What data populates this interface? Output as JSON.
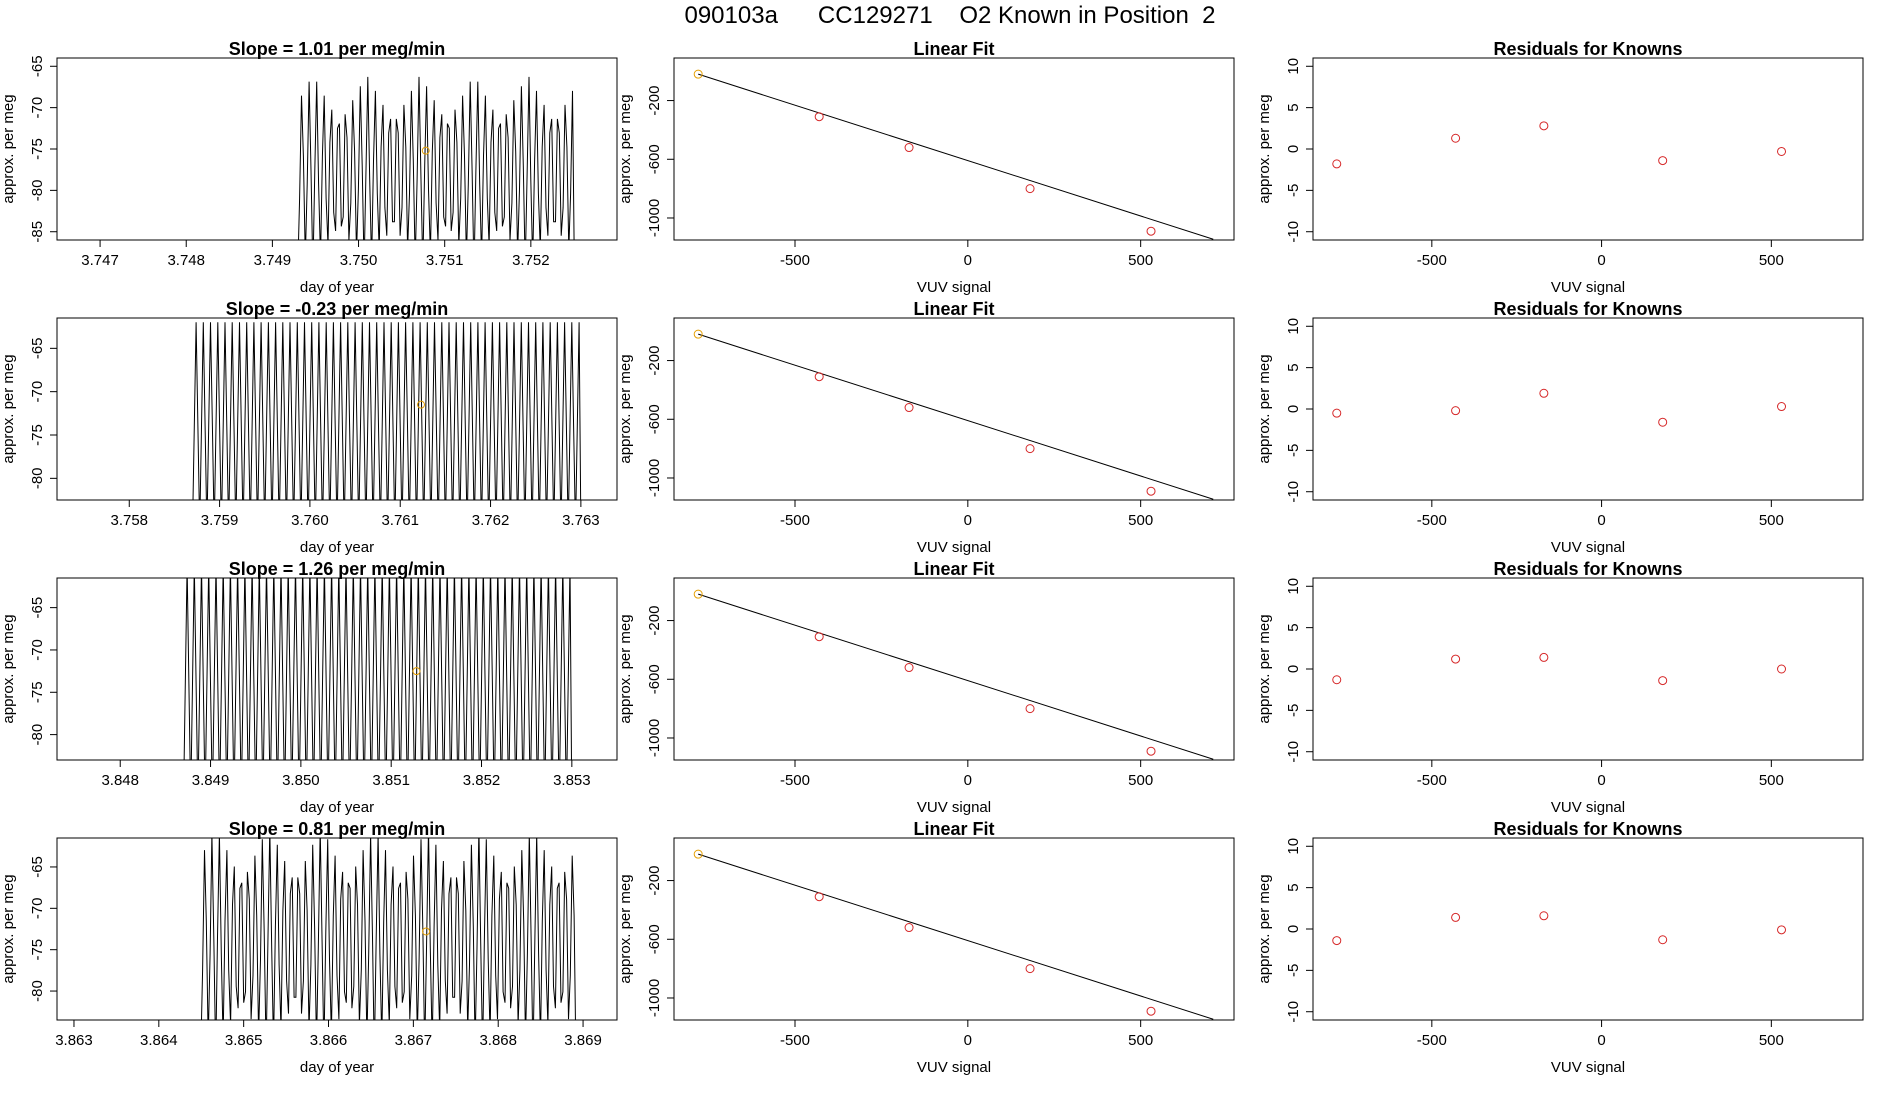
{
  "figure": {
    "title": "090103a      CC129271    O2 Known in Position  2"
  },
  "colors": {
    "axis": "#000000",
    "trace": "#000000",
    "point": "#d62728",
    "first_point": "#e69f00",
    "marker": "#e69f00"
  },
  "chart_data": [
    {
      "type": "line",
      "panel": "timeseries",
      "title": "Slope =  1.01  per meg/min",
      "xlabel": "day of year",
      "ylabel": "approx. per meg",
      "xlim": [
        3.7465,
        3.753
      ],
      "ylim": [
        -86,
        -64
      ],
      "xticks": [
        "3.747",
        "3.748",
        "3.749",
        "3.750",
        "3.751",
        "3.752"
      ],
      "yticks": [
        "-65",
        "-70",
        "-75",
        "-80",
        "-85"
      ],
      "series": {
        "x_start": 3.7465,
        "x_step": 2.2e-05,
        "signal_start": 3.7493,
        "signal_end": 3.7525,
        "period": 8.5e-05,
        "low": -90,
        "high": -66
      },
      "marker": {
        "x": 3.75078,
        "y": -75.2
      }
    },
    {
      "type": "scatter",
      "panel": "linear_fit",
      "title": "Linear Fit",
      "xlabel": "VUV signal",
      "ylabel": "approx. per meg",
      "xlim": [
        -850,
        770
      ],
      "ylim": [
        -1150,
        90
      ],
      "xticks": [
        "-500",
        "0",
        "500"
      ],
      "yticks": [
        "-200",
        "-600",
        "-1000"
      ],
      "x": [
        -780,
        -430,
        -170,
        180,
        530
      ],
      "y": [
        -20,
        -310,
        -520,
        -800,
        -1090
      ],
      "fit_line": {
        "x": [
          -780,
          710
        ],
        "y": [
          -20,
          -1145
        ]
      }
    },
    {
      "type": "scatter",
      "panel": "residuals",
      "title": "Residuals for Knowns",
      "xlabel": "VUV signal",
      "ylabel": "approx. per meg",
      "xlim": [
        -850,
        770
      ],
      "ylim": [
        -11,
        11
      ],
      "xticks": [
        "-500",
        "0",
        "500"
      ],
      "yticks": [
        "10",
        "5",
        "0",
        "-5",
        "-10"
      ],
      "x": [
        -780,
        -430,
        -170,
        180,
        530
      ],
      "y": [
        -1.8,
        1.3,
        2.8,
        -1.4,
        -0.3
      ]
    },
    {
      "type": "line",
      "panel": "timeseries",
      "title": "Slope =  -0.23  per meg/min",
      "xlabel": "day of year",
      "ylabel": "approx. per meg",
      "xlim": [
        3.7572,
        3.7634
      ],
      "ylim": [
        -82.5,
        -61.5
      ],
      "xticks": [
        "3.758",
        "3.759",
        "3.760",
        "3.761",
        "3.762",
        "3.763"
      ],
      "yticks": [
        "-65",
        "-70",
        "-75",
        "-80"
      ],
      "series": {
        "x_start": 3.7572,
        "x_step": 2e-05,
        "signal_start": 3.7587,
        "signal_end": 3.763,
        "period": 8e-05,
        "low": -86,
        "high": -62
      },
      "marker": {
        "x": 3.76123,
        "y": -71.5
      }
    },
    {
      "type": "scatter",
      "panel": "linear_fit",
      "title": "Linear Fit",
      "xlabel": "VUV signal",
      "ylabel": "approx. per meg",
      "xlim": [
        -850,
        770
      ],
      "ylim": [
        -1150,
        90
      ],
      "xticks": [
        "-500",
        "0",
        "500"
      ],
      "yticks": [
        "-200",
        "-600",
        "-1000"
      ],
      "x": [
        -780,
        -430,
        -170,
        180,
        530
      ],
      "y": [
        -20,
        -310,
        -520,
        -800,
        -1090
      ],
      "fit_line": {
        "x": [
          -780,
          710
        ],
        "y": [
          -20,
          -1145
        ]
      }
    },
    {
      "type": "scatter",
      "panel": "residuals",
      "title": "Residuals for Knowns",
      "xlabel": "VUV signal",
      "ylabel": "approx. per meg",
      "xlim": [
        -850,
        770
      ],
      "ylim": [
        -11,
        11
      ],
      "xticks": [
        "-500",
        "0",
        "500"
      ],
      "yticks": [
        "10",
        "5",
        "0",
        "-5",
        "-10"
      ],
      "x": [
        -780,
        -430,
        -170,
        180,
        530
      ],
      "y": [
        -0.5,
        -0.2,
        1.9,
        -1.6,
        0.3
      ]
    },
    {
      "type": "line",
      "panel": "timeseries",
      "title": "Slope =  1.26  per meg/min",
      "xlabel": "day of year",
      "ylabel": "approx. per meg",
      "xlim": [
        3.8473,
        3.8535
      ],
      "ylim": [
        -83,
        -61.5
      ],
      "xticks": [
        "3.848",
        "3.849",
        "3.850",
        "3.851",
        "3.852",
        "3.853"
      ],
      "yticks": [
        "-65",
        "-70",
        "-75",
        "-80"
      ],
      "series": {
        "x_start": 3.8473,
        "x_step": 2e-05,
        "signal_start": 3.8487,
        "signal_end": 3.853,
        "period": 8e-05,
        "low": -88,
        "high": -60
      },
      "marker": {
        "x": 3.85128,
        "y": -72.5
      }
    },
    {
      "type": "scatter",
      "panel": "linear_fit",
      "title": "Linear Fit",
      "xlabel": "VUV signal",
      "ylabel": "approx. per meg",
      "xlim": [
        -850,
        770
      ],
      "ylim": [
        -1150,
        90
      ],
      "xticks": [
        "-500",
        "0",
        "500"
      ],
      "yticks": [
        "-200",
        "-600",
        "-1000"
      ],
      "x": [
        -780,
        -430,
        -170,
        180,
        530
      ],
      "y": [
        -20,
        -310,
        -520,
        -800,
        -1090
      ],
      "fit_line": {
        "x": [
          -780,
          710
        ],
        "y": [
          -20,
          -1145
        ]
      }
    },
    {
      "type": "scatter",
      "panel": "residuals",
      "title": "Residuals for Knowns",
      "xlabel": "VUV signal",
      "ylabel": "approx. per meg",
      "xlim": [
        -850,
        770
      ],
      "ylim": [
        -11,
        11
      ],
      "xticks": [
        "-500",
        "0",
        "500"
      ],
      "yticks": [
        "10",
        "5",
        "0",
        "-5",
        "-10"
      ],
      "x": [
        -780,
        -430,
        -170,
        180,
        530
      ],
      "y": [
        -1.3,
        1.2,
        1.4,
        -1.4,
        0.0
      ]
    },
    {
      "type": "line",
      "panel": "timeseries",
      "title": "Slope =  0.81  per meg/min",
      "xlabel": "day of year",
      "ylabel": "approx. per meg",
      "xlim": [
        3.8628,
        3.8694
      ],
      "ylim": [
        -83.5,
        -61.5
      ],
      "xticks": [
        "3.863",
        "3.864",
        "3.865",
        "3.866",
        "3.867",
        "3.868",
        "3.869"
      ],
      "yticks": [
        "-65",
        "-70",
        "-75",
        "-80"
      ],
      "series": {
        "x_start": 3.8628,
        "x_step": 2.2e-05,
        "signal_start": 3.8645,
        "signal_end": 3.8689,
        "period": 8.5e-05,
        "low": -88,
        "high": -60
      },
      "marker": {
        "x": 3.86715,
        "y": -72.8
      }
    },
    {
      "type": "scatter",
      "panel": "linear_fit",
      "title": "Linear Fit",
      "xlabel": "VUV signal",
      "ylabel": "approx. per meg",
      "xlim": [
        -850,
        770
      ],
      "ylim": [
        -1150,
        90
      ],
      "xticks": [
        "-500",
        "0",
        "500"
      ],
      "yticks": [
        "-200",
        "-600",
        "-1000"
      ],
      "x": [
        -780,
        -430,
        -170,
        180,
        530
      ],
      "y": [
        -20,
        -310,
        -520,
        -800,
        -1090
      ],
      "fit_line": {
        "x": [
          -780,
          710
        ],
        "y": [
          -20,
          -1145
        ]
      }
    },
    {
      "type": "scatter",
      "panel": "residuals",
      "title": "Residuals for Knowns",
      "xlabel": "VUV signal",
      "ylabel": "approx. per meg",
      "xlim": [
        -850,
        770
      ],
      "ylim": [
        -11,
        11
      ],
      "xticks": [
        "-500",
        "0",
        "500"
      ],
      "yticks": [
        "10",
        "5",
        "0",
        "-5",
        "-10"
      ],
      "x": [
        -780,
        -430,
        -170,
        180,
        530
      ],
      "y": [
        -1.4,
        1.4,
        1.6,
        -1.3,
        -0.1
      ]
    }
  ]
}
